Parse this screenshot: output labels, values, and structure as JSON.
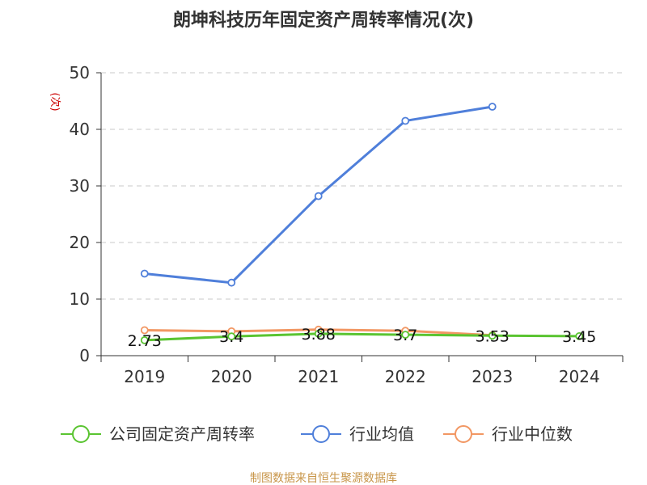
{
  "chart_data": {
    "type": "line",
    "title": "朗坤科技历年固定资产周转率情况(次)",
    "ylabel": "(次)",
    "xlabel": "",
    "ylim": [
      0,
      50
    ],
    "yticks": [
      0,
      10,
      20,
      30,
      40,
      50
    ],
    "categories": [
      "2019",
      "2020",
      "2021",
      "2022",
      "2023",
      "2024"
    ],
    "grid": true,
    "legend_position": "bottom",
    "series": [
      {
        "name": "公司固定资产周转率",
        "color": "#5ac431",
        "values": [
          2.73,
          3.4,
          3.88,
          3.7,
          3.53,
          3.45
        ],
        "labels": [
          "2.73",
          "3.4",
          "3.88",
          "3.7",
          "3.53",
          "3.45"
        ]
      },
      {
        "name": "行业均值",
        "color": "#4f7fda",
        "values": [
          14.5,
          12.9,
          28.2,
          41.5,
          44.0,
          null
        ]
      },
      {
        "name": "行业中位数",
        "color": "#f29763",
        "values": [
          4.5,
          4.3,
          4.6,
          4.4,
          3.6,
          null
        ]
      }
    ],
    "source": "制图数据来自恒生聚源数据库"
  },
  "colors": {
    "title": "#333333",
    "ylabel": "#cc0000",
    "source": "#c8964a",
    "axis": "#333333",
    "grid": "#c8c8c8"
  }
}
